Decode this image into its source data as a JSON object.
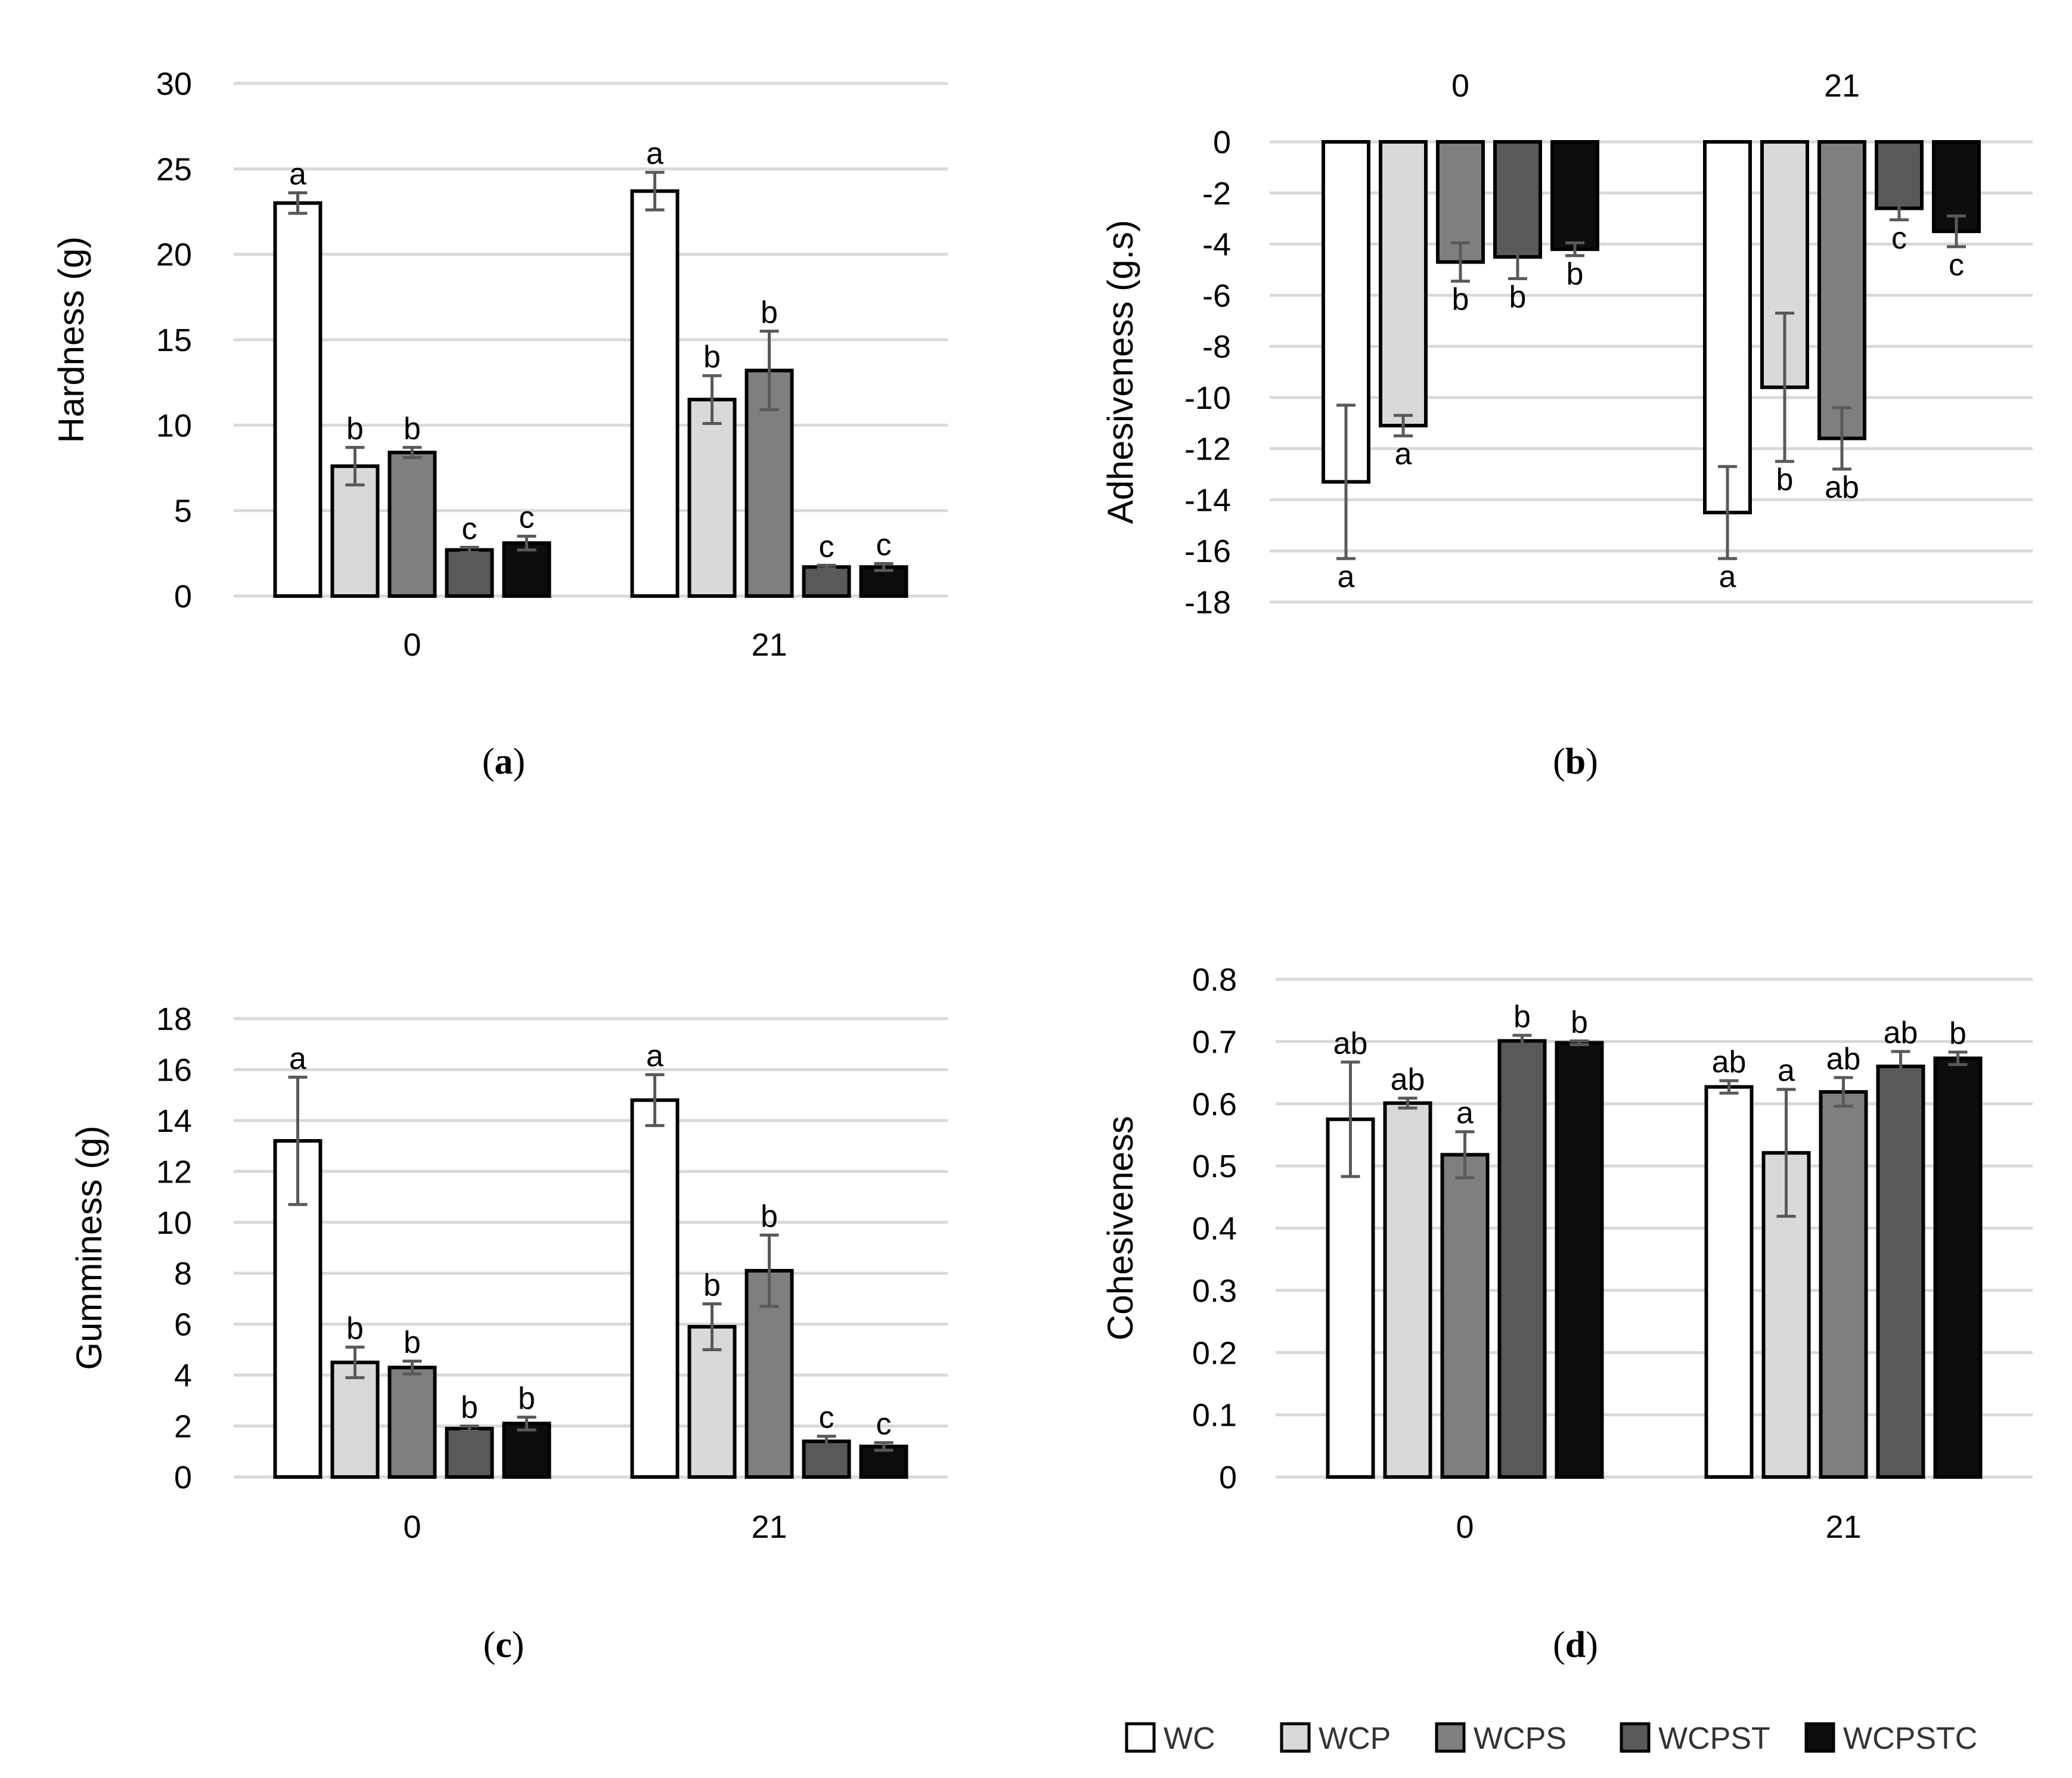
{
  "colors": {
    "WC": "#ffffff",
    "WCP": "#d9d9d9",
    "WCPS": "#7f7f7f",
    "WCPST": "#595959",
    "WCPSTC": "#0d0d0d",
    "grid": "#d9d9d9",
    "error": "#595959",
    "bar_stroke": "#000000"
  },
  "legend": {
    "items": [
      "WC",
      "WCP",
      "WCPS",
      "WCPST",
      "WCPSTC"
    ]
  },
  "chart_data": [
    {
      "id": "hardness",
      "type": "bar",
      "panel_label": "a",
      "ylabel": "Hardness (g)",
      "xlabel": "",
      "ylim": [
        0,
        30
      ],
      "yticks": [
        "0",
        "5",
        "10",
        "15",
        "20",
        "25",
        "30"
      ],
      "categories": [
        "0",
        "21"
      ],
      "x_axis_position": "bottom",
      "series": [
        {
          "name": "WC",
          "values": [
            23.0,
            23.7
          ],
          "errors": [
            0.6,
            1.1
          ],
          "letters": [
            "a",
            "a"
          ]
        },
        {
          "name": "WCP",
          "values": [
            7.6,
            11.5
          ],
          "errors": [
            1.1,
            1.4
          ],
          "letters": [
            "b",
            "b"
          ]
        },
        {
          "name": "WCPS",
          "values": [
            8.4,
            13.2
          ],
          "errors": [
            0.3,
            2.3
          ],
          "letters": [
            "b",
            "b"
          ]
        },
        {
          "name": "WCPST",
          "values": [
            2.7,
            1.7
          ],
          "errors": [
            0.15,
            0.1
          ],
          "letters": [
            "c",
            "c"
          ]
        },
        {
          "name": "WCPSTC",
          "values": [
            3.1,
            1.7
          ],
          "errors": [
            0.4,
            0.2
          ],
          "letters": [
            "c",
            "c"
          ]
        }
      ]
    },
    {
      "id": "adhesiveness",
      "type": "bar",
      "panel_label": "b",
      "ylabel": "Adhesiveness (g.s)",
      "xlabel": "",
      "ylim": [
        -18,
        0
      ],
      "yticks": [
        "0",
        "-2",
        "-4",
        "-6",
        "-8",
        "-10",
        "-12",
        "-14",
        "-16",
        "-18"
      ],
      "categories": [
        "0",
        "21"
      ],
      "x_axis_position": "top",
      "series": [
        {
          "name": "WC",
          "values": [
            -13.3,
            -14.5
          ],
          "errors": [
            3.0,
            1.8
          ],
          "letters": [
            "a",
            "a"
          ]
        },
        {
          "name": "WCP",
          "values": [
            -11.1,
            -9.6
          ],
          "errors": [
            0.4,
            2.9
          ],
          "letters": [
            "a",
            "b"
          ]
        },
        {
          "name": "WCPS",
          "values": [
            -4.7,
            -11.6
          ],
          "errors": [
            0.75,
            1.2
          ],
          "letters": [
            "b",
            "ab"
          ]
        },
        {
          "name": "WCPST",
          "values": [
            -4.5,
            -2.6
          ],
          "errors": [
            0.85,
            0.45
          ],
          "letters": [
            "b",
            "c"
          ]
        },
        {
          "name": "WCPSTC",
          "values": [
            -4.2,
            -3.5
          ],
          "errors": [
            0.25,
            0.6
          ],
          "letters": [
            "b",
            "c"
          ]
        }
      ]
    },
    {
      "id": "gumminess",
      "type": "bar",
      "panel_label": "c",
      "ylabel": "Gumminess (g)",
      "xlabel": "",
      "ylim": [
        0,
        18
      ],
      "yticks": [
        "0",
        "2",
        "4",
        "6",
        "8",
        "10",
        "12",
        "14",
        "16",
        "18"
      ],
      "categories": [
        "0",
        "21"
      ],
      "x_axis_position": "bottom",
      "series": [
        {
          "name": "WC",
          "values": [
            13.2,
            14.8
          ],
          "errors": [
            2.5,
            1.0
          ],
          "letters": [
            "a",
            "a"
          ]
        },
        {
          "name": "WCP",
          "values": [
            4.5,
            5.9
          ],
          "errors": [
            0.6,
            0.9
          ],
          "letters": [
            "b",
            "b"
          ]
        },
        {
          "name": "WCPS",
          "values": [
            4.3,
            8.1
          ],
          "errors": [
            0.25,
            1.4
          ],
          "letters": [
            "b",
            "b"
          ]
        },
        {
          "name": "WCPST",
          "values": [
            1.9,
            1.4
          ],
          "errors": [
            0.1,
            0.2
          ],
          "letters": [
            "b",
            "c"
          ]
        },
        {
          "name": "WCPSTC",
          "values": [
            2.1,
            1.2
          ],
          "errors": [
            0.25,
            0.15
          ],
          "letters": [
            "b",
            "c"
          ]
        }
      ]
    },
    {
      "id": "cohesiveness",
      "type": "bar",
      "panel_label": "d",
      "ylabel": "Cohesiveness",
      "xlabel": "",
      "ylim": [
        0,
        0.8
      ],
      "yticks": [
        "0",
        "0.1",
        "0.2",
        "0.3",
        "0.4",
        "0.5",
        "0.6",
        "0.7",
        "0.8"
      ],
      "categories": [
        "0",
        "21"
      ],
      "x_axis_position": "bottom",
      "series": [
        {
          "name": "WC",
          "values": [
            0.575,
            0.627
          ],
          "errors": [
            0.092,
            0.01
          ],
          "letters": [
            "ab",
            "ab"
          ]
        },
        {
          "name": "WCP",
          "values": [
            0.601,
            0.521
          ],
          "errors": [
            0.008,
            0.102
          ],
          "letters": [
            "ab",
            "a"
          ]
        },
        {
          "name": "WCPS",
          "values": [
            0.518,
            0.619
          ],
          "errors": [
            0.037,
            0.023
          ],
          "letters": [
            "a",
            "ab"
          ]
        },
        {
          "name": "WCPST",
          "values": [
            0.701,
            0.66
          ],
          "errors": [
            0.009,
            0.024
          ],
          "letters": [
            "b",
            "ab"
          ]
        },
        {
          "name": "WCPSTC",
          "values": [
            0.698,
            0.673
          ],
          "errors": [
            0.003,
            0.01
          ],
          "letters": [
            "b",
            "b"
          ]
        }
      ]
    }
  ]
}
